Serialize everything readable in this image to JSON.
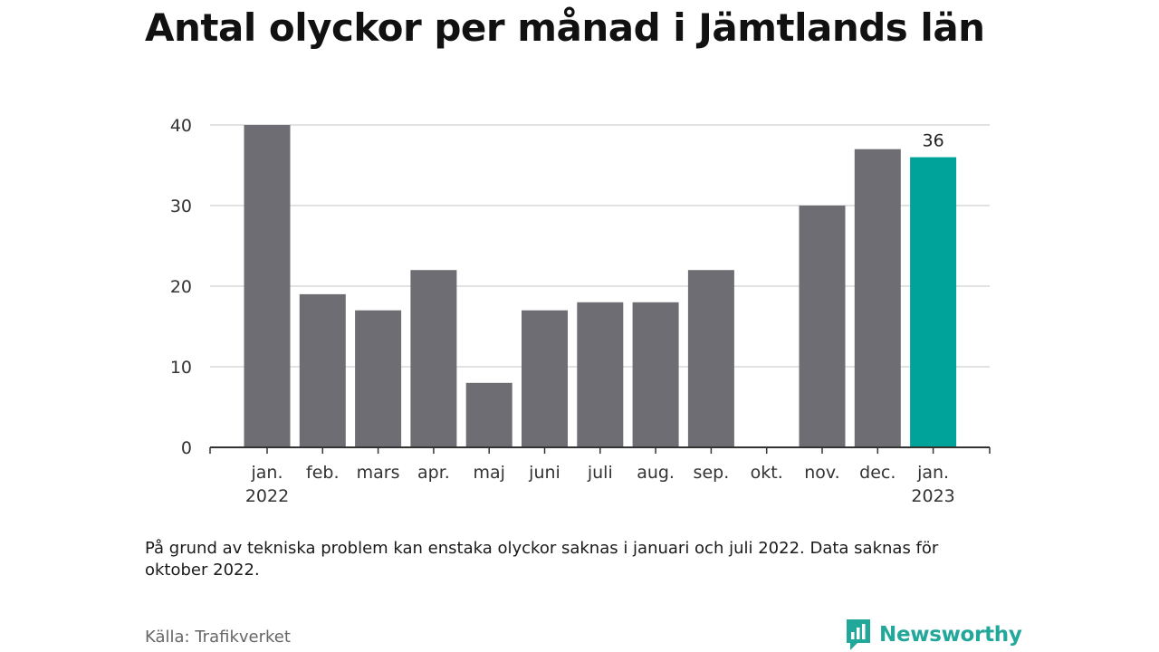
{
  "title": "Antal olyckor per månad i Jämtlands län",
  "note": "På grund av tekniska problem kan enstaka olyckor saknas i januari och juli 2022. Data saknas för oktober 2022.",
  "source": "Källa: Trafikverket",
  "brand": {
    "name": "Newsworthy",
    "icon": "newsworthy-logo-icon",
    "color": "#22a79b"
  },
  "chart_data": {
    "type": "bar",
    "categories": [
      [
        "jan.",
        "2022"
      ],
      [
        "feb."
      ],
      [
        "mars"
      ],
      [
        "apr."
      ],
      [
        "maj"
      ],
      [
        "juni"
      ],
      [
        "juli"
      ],
      [
        "aug."
      ],
      [
        "sep."
      ],
      [
        "okt."
      ],
      [
        "nov."
      ],
      [
        "dec."
      ],
      [
        "jan.",
        "2023"
      ]
    ],
    "values": [
      40,
      19,
      17,
      22,
      8,
      17,
      18,
      18,
      22,
      null,
      30,
      37,
      36
    ],
    "ylim": [
      0,
      40
    ],
    "yticks": [
      0,
      10,
      20,
      30,
      40
    ],
    "grid": true,
    "highlight_index": 12,
    "data_labels": [
      {
        "index": 12,
        "text": "36"
      }
    ],
    "colors": {
      "bar": "#6e6d73",
      "highlight": "#00a39a",
      "grid": "#d9d9d9",
      "axis": "#333333"
    }
  }
}
